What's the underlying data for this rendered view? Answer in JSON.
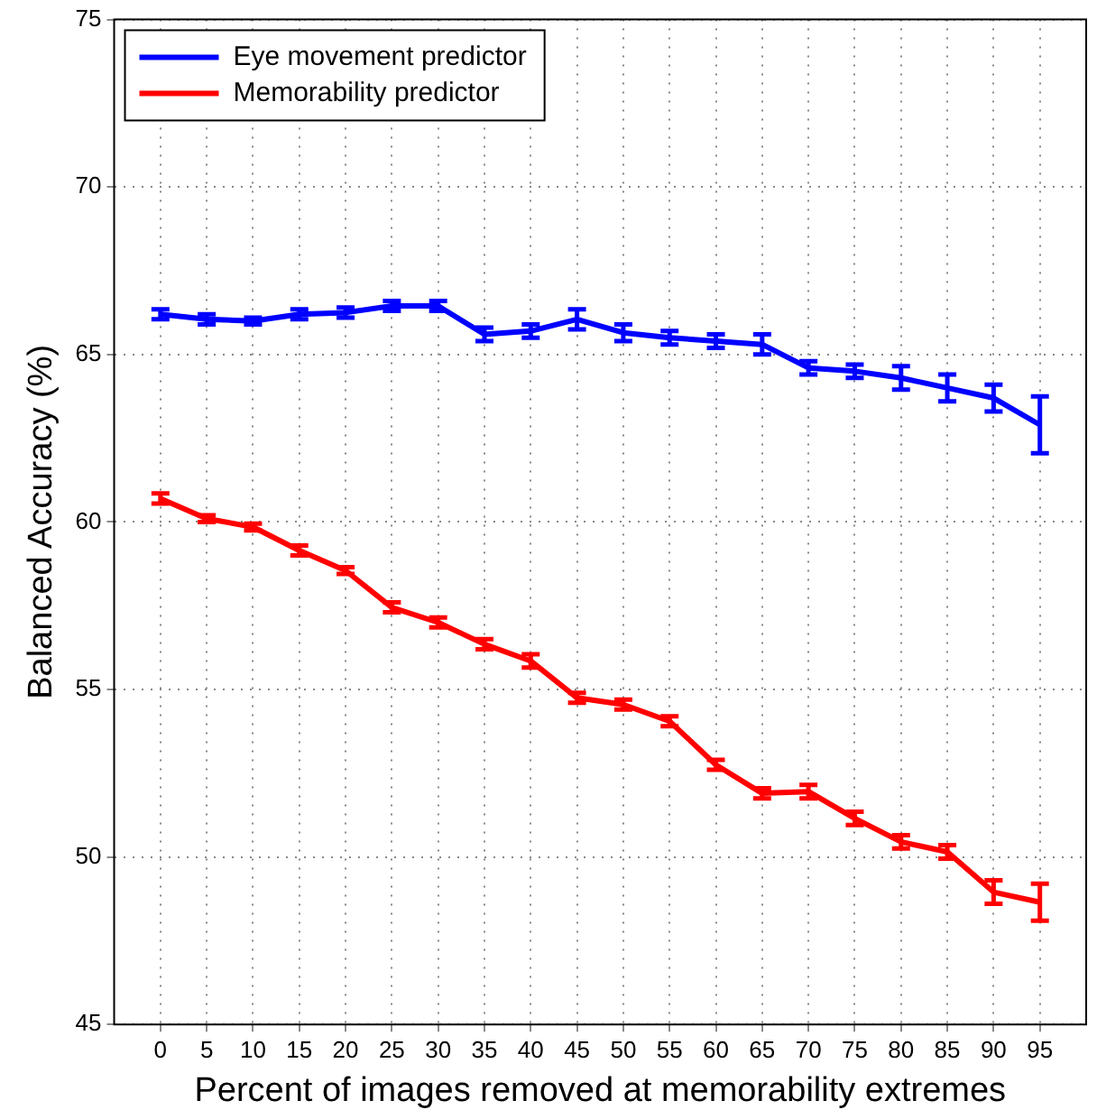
{
  "chart_data": {
    "type": "line",
    "xlabel": "Percent of images removed at memorability extremes",
    "ylabel": "Balanced Accuracy (%)",
    "x": [
      0,
      5,
      10,
      15,
      20,
      25,
      30,
      35,
      40,
      45,
      50,
      55,
      60,
      65,
      70,
      75,
      80,
      85,
      90,
      95
    ],
    "xlim": [
      -5,
      100
    ],
    "xticks": [
      0,
      5,
      10,
      15,
      20,
      25,
      30,
      35,
      40,
      45,
      50,
      55,
      60,
      65,
      70,
      75,
      80,
      85,
      90,
      95
    ],
    "ylim": [
      45,
      75
    ],
    "yticks": [
      45,
      50,
      55,
      60,
      65,
      70,
      75
    ],
    "grid": true,
    "legend": "top left",
    "series": [
      {
        "name": "Eye movement predictor",
        "color": "#0000ff",
        "values": [
          66.2,
          66.05,
          66.0,
          66.2,
          66.25,
          66.45,
          66.45,
          65.6,
          65.7,
          66.05,
          65.65,
          65.5,
          65.4,
          65.3,
          64.6,
          64.5,
          64.3,
          64.0,
          63.7,
          62.9
        ],
        "errors": [
          0.15,
          0.15,
          0.1,
          0.15,
          0.15,
          0.15,
          0.15,
          0.2,
          0.2,
          0.3,
          0.25,
          0.2,
          0.2,
          0.3,
          0.2,
          0.2,
          0.35,
          0.4,
          0.4,
          0.85
        ]
      },
      {
        "name": "Memorability predictor",
        "color": "#ff0000",
        "values": [
          60.7,
          60.1,
          59.85,
          59.15,
          58.55,
          57.45,
          57.0,
          56.35,
          55.85,
          54.75,
          54.55,
          54.05,
          52.75,
          51.9,
          51.95,
          51.15,
          50.45,
          50.15,
          48.95,
          48.65
        ],
        "errors": [
          0.15,
          0.1,
          0.1,
          0.15,
          0.1,
          0.15,
          0.15,
          0.15,
          0.2,
          0.15,
          0.15,
          0.15,
          0.15,
          0.15,
          0.2,
          0.2,
          0.2,
          0.2,
          0.35,
          0.55
        ]
      }
    ]
  }
}
